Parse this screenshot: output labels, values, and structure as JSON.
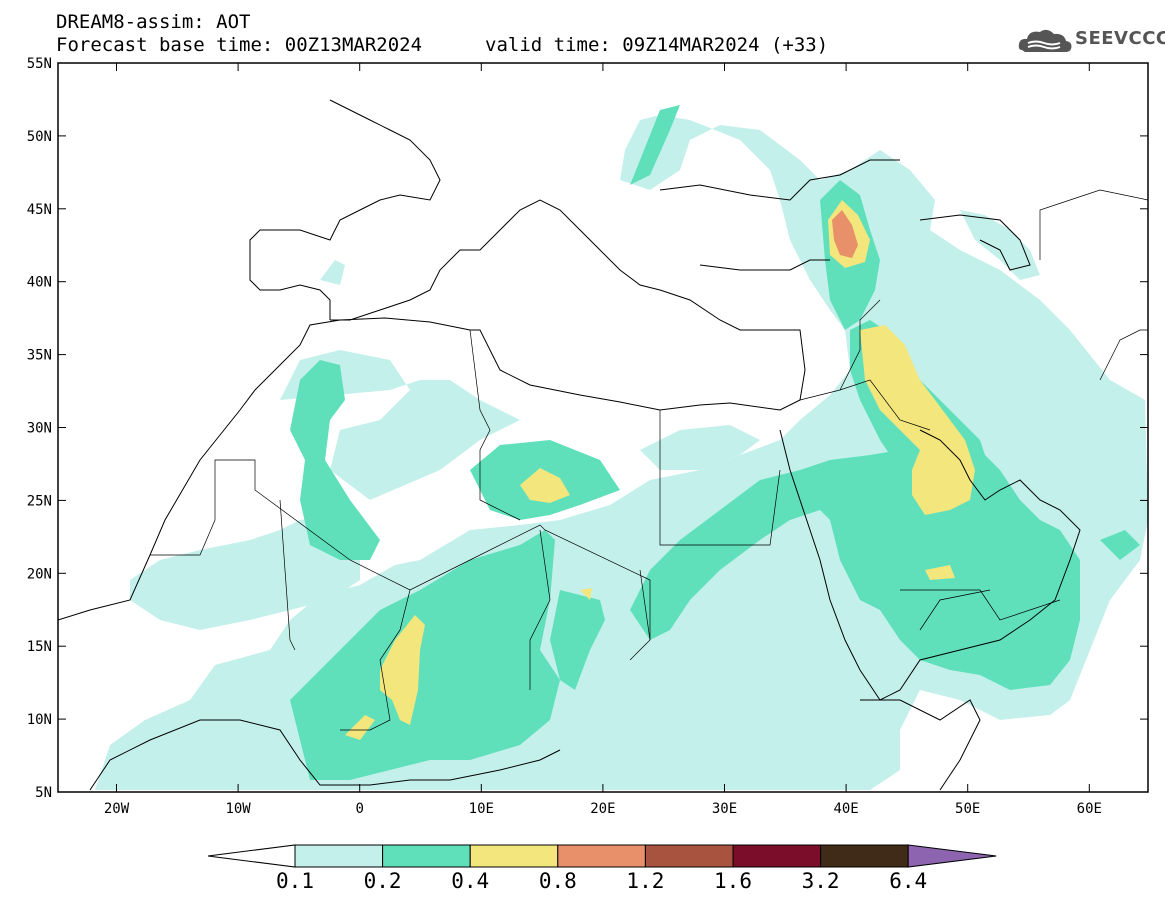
{
  "header": {
    "title": "DREAM8-assim: AOT",
    "base_time": "Forecast base time: 00Z13MAR2024",
    "valid_time": "valid time: 09Z14MAR2024 (+33)",
    "logo_text": "SEEVCCC"
  },
  "axes": {
    "lat_labels": [
      "55N",
      "50N",
      "45N",
      "40N",
      "35N",
      "30N",
      "25N",
      "20N",
      "15N",
      "10N",
      "5N"
    ],
    "lon_labels": [
      "20W",
      "10W",
      "0",
      "10E",
      "20E",
      "30E",
      "40E",
      "50E",
      "60E"
    ]
  },
  "colorbar": {
    "labels": [
      "0.1",
      "0.2",
      "0.4",
      "0.8",
      "1.2",
      "1.6",
      "3.2",
      "6.4"
    ],
    "colors": [
      "#ffffff",
      "#c4f0ec",
      "#5fe0bb",
      "#f2e67c",
      "#e8906a",
      "#a85340",
      "#7b0c2a",
      "#3f2b17",
      "#8c64b0"
    ]
  },
  "colors": {
    "aot_0_1": "#c4f0ec",
    "aot_0_2": "#5fe0bb",
    "aot_0_4": "#f2e67c",
    "aot_0_8": "#e8906a",
    "frame": "#000000"
  }
}
